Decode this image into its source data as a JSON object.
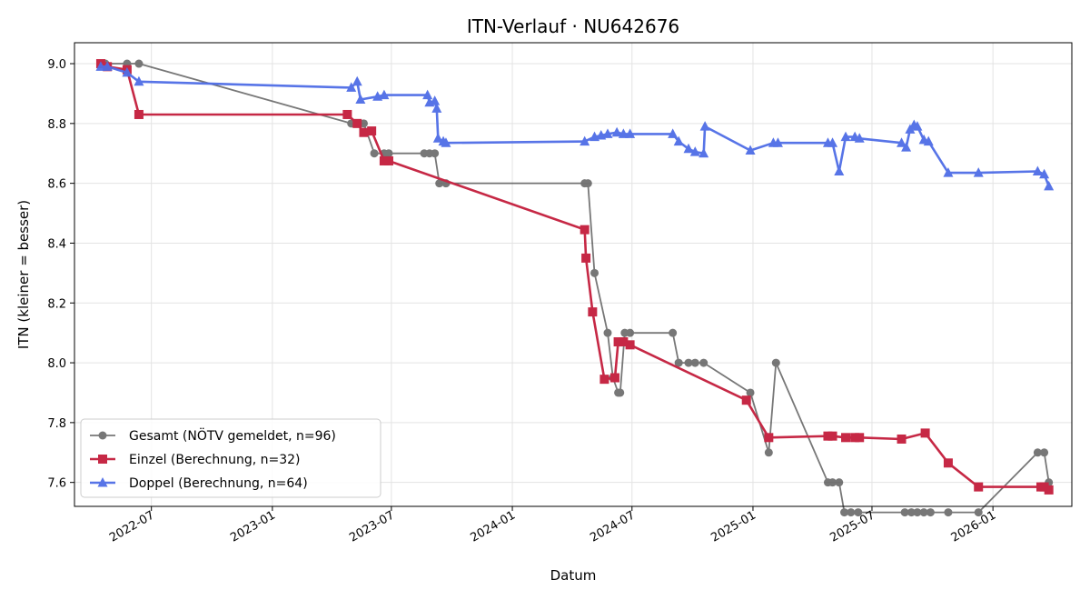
{
  "chart_data": {
    "type": "line",
    "title": "ITN-Verlauf · NU642676",
    "xlabel": "Datum",
    "ylabel": "ITN  (kleiner = besser)",
    "xlim": [
      "2022-03-06",
      "2026-05-01"
    ],
    "ylim": [
      7.52,
      9.07
    ],
    "x_ticks": [
      "2022-07",
      "2023-01",
      "2023-07",
      "2024-01",
      "2024-07",
      "2025-01",
      "2025-07",
      "2026-01"
    ],
    "y_ticks": [
      7.6,
      7.8,
      8.0,
      8.2,
      8.4,
      8.6,
      8.8,
      9.0
    ],
    "grid": true,
    "legend_position": "lower-left",
    "series": [
      {
        "name": "Gesamt (NÖTV gemeldet, n=96)",
        "color": "#444444",
        "marker": "circle",
        "points": [
          [
            "2022-04-15",
            9.0
          ],
          [
            "2022-04-22",
            9.0
          ],
          [
            "2022-05-25",
            9.0
          ],
          [
            "2022-06-12",
            9.0
          ],
          [
            "2023-05-01",
            8.8
          ],
          [
            "2023-05-10",
            8.8
          ],
          [
            "2023-05-20",
            8.8
          ],
          [
            "2023-06-05",
            8.7
          ],
          [
            "2023-06-20",
            8.7
          ],
          [
            "2023-06-27",
            8.7
          ],
          [
            "2023-08-20",
            8.7
          ],
          [
            "2023-08-28",
            8.7
          ],
          [
            "2023-09-05",
            8.7
          ],
          [
            "2023-09-12",
            8.6
          ],
          [
            "2023-09-22",
            8.6
          ],
          [
            "2024-04-20",
            8.6
          ],
          [
            "2024-04-25",
            8.6
          ],
          [
            "2024-05-05",
            8.3
          ],
          [
            "2024-05-25",
            8.1
          ],
          [
            "2024-06-02",
            7.95
          ],
          [
            "2024-06-10",
            7.9
          ],
          [
            "2024-06-13",
            7.9
          ],
          [
            "2024-06-20",
            8.1
          ],
          [
            "2024-06-28",
            8.1
          ],
          [
            "2024-09-01",
            8.1
          ],
          [
            "2024-09-10",
            8.0
          ],
          [
            "2024-09-25",
            8.0
          ],
          [
            "2024-10-05",
            8.0
          ],
          [
            "2024-10-18",
            8.0
          ],
          [
            "2024-12-28",
            7.9
          ],
          [
            "2025-01-25",
            7.7
          ],
          [
            "2025-02-05",
            8.0
          ],
          [
            "2025-04-25",
            7.6
          ],
          [
            "2025-05-02",
            7.6
          ],
          [
            "2025-05-12",
            7.6
          ],
          [
            "2025-05-20",
            7.5
          ],
          [
            "2025-05-30",
            7.5
          ],
          [
            "2025-06-10",
            7.5
          ],
          [
            "2025-08-20",
            7.5
          ],
          [
            "2025-08-30",
            7.5
          ],
          [
            "2025-09-08",
            7.5
          ],
          [
            "2025-09-18",
            7.5
          ],
          [
            "2025-09-28",
            7.5
          ],
          [
            "2025-10-25",
            7.5
          ],
          [
            "2025-12-10",
            7.5
          ],
          [
            "2026-03-10",
            7.7
          ],
          [
            "2026-03-20",
            7.7
          ],
          [
            "2026-03-27",
            7.6
          ]
        ]
      },
      {
        "name": "Einzel (Berechnung, n=32)",
        "color": "#c62845",
        "marker": "square",
        "points": [
          [
            "2022-04-15",
            9.0
          ],
          [
            "2022-04-25",
            8.99
          ],
          [
            "2022-05-25",
            8.98
          ],
          [
            "2022-06-12",
            8.83
          ],
          [
            "2023-04-25",
            8.83
          ],
          [
            "2023-05-10",
            8.8
          ],
          [
            "2023-05-20",
            8.77
          ],
          [
            "2023-06-01",
            8.775
          ],
          [
            "2023-06-20",
            8.675
          ],
          [
            "2023-06-27",
            8.675
          ],
          [
            "2024-04-20",
            8.445
          ],
          [
            "2024-04-22",
            8.35
          ],
          [
            "2024-05-02",
            8.17
          ],
          [
            "2024-05-20",
            7.945
          ],
          [
            "2024-06-05",
            7.95
          ],
          [
            "2024-06-10",
            8.07
          ],
          [
            "2024-06-18",
            8.07
          ],
          [
            "2024-06-28",
            8.06
          ],
          [
            "2024-12-22",
            7.875
          ],
          [
            "2025-01-25",
            7.75
          ],
          [
            "2025-04-25",
            7.755
          ],
          [
            "2025-05-02",
            7.755
          ],
          [
            "2025-05-22",
            7.75
          ],
          [
            "2025-06-05",
            7.75
          ],
          [
            "2025-06-12",
            7.75
          ],
          [
            "2025-08-15",
            7.745
          ],
          [
            "2025-09-20",
            7.765
          ],
          [
            "2025-10-25",
            7.665
          ],
          [
            "2025-12-10",
            7.585
          ],
          [
            "2026-03-15",
            7.585
          ],
          [
            "2026-03-20",
            7.585
          ],
          [
            "2026-03-27",
            7.575
          ]
        ]
      },
      {
        "name": "Doppel (Berechnung, n=64)",
        "color": "#4f6de6",
        "marker": "triangle",
        "points": [
          [
            "2022-04-15",
            8.99
          ],
          [
            "2022-04-25",
            8.99
          ],
          [
            "2022-05-25",
            8.97
          ],
          [
            "2022-06-12",
            8.94
          ],
          [
            "2023-05-01",
            8.92
          ],
          [
            "2023-05-10",
            8.94
          ],
          [
            "2023-05-15",
            8.88
          ],
          [
            "2023-06-10",
            8.89
          ],
          [
            "2023-06-20",
            8.895
          ],
          [
            "2023-08-25",
            8.895
          ],
          [
            "2023-08-28",
            8.87
          ],
          [
            "2023-09-05",
            8.875
          ],
          [
            "2023-09-08",
            8.85
          ],
          [
            "2023-09-10",
            8.75
          ],
          [
            "2023-09-18",
            8.74
          ],
          [
            "2023-09-22",
            8.735
          ],
          [
            "2024-04-20",
            8.74
          ],
          [
            "2024-05-05",
            8.755
          ],
          [
            "2024-05-15",
            8.76
          ],
          [
            "2024-05-25",
            8.765
          ],
          [
            "2024-06-08",
            8.77
          ],
          [
            "2024-06-18",
            8.765
          ],
          [
            "2024-06-28",
            8.765
          ],
          [
            "2024-09-01",
            8.765
          ],
          [
            "2024-09-10",
            8.74
          ],
          [
            "2024-09-25",
            8.715
          ],
          [
            "2024-10-05",
            8.705
          ],
          [
            "2024-10-18",
            8.7
          ],
          [
            "2024-10-20",
            8.79
          ],
          [
            "2024-12-28",
            8.71
          ],
          [
            "2025-02-01",
            8.735
          ],
          [
            "2025-02-08",
            8.735
          ],
          [
            "2025-04-25",
            8.735
          ],
          [
            "2025-05-02",
            8.735
          ],
          [
            "2025-05-12",
            8.64
          ],
          [
            "2025-05-22",
            8.755
          ],
          [
            "2025-06-05",
            8.755
          ],
          [
            "2025-06-12",
            8.75
          ],
          [
            "2025-08-15",
            8.735
          ],
          [
            "2025-08-22",
            8.72
          ],
          [
            "2025-08-28",
            8.78
          ],
          [
            "2025-09-03",
            8.795
          ],
          [
            "2025-09-08",
            8.79
          ],
          [
            "2025-09-18",
            8.745
          ],
          [
            "2025-09-25",
            8.74
          ],
          [
            "2025-10-25",
            8.635
          ],
          [
            "2025-12-10",
            8.635
          ],
          [
            "2026-03-10",
            8.64
          ],
          [
            "2026-03-20",
            8.63
          ],
          [
            "2026-03-27",
            8.59
          ]
        ]
      }
    ]
  }
}
